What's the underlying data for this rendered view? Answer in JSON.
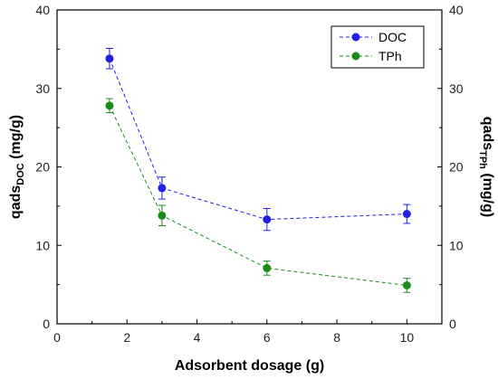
{
  "chart_data": {
    "type": "line",
    "xlabel": "Adsorbent dosage (g)",
    "ylabel_left": {
      "main": "qads",
      "sub": "DOC",
      "unit": " (mg/g)"
    },
    "ylabel_right": {
      "main": "qads",
      "sub": "TPh",
      "unit": " (mg/g)"
    },
    "xlim": [
      0,
      11
    ],
    "ylim": [
      0,
      40
    ],
    "x_ticks": [
      0,
      2,
      4,
      6,
      8,
      10
    ],
    "y_ticks": [
      0,
      10,
      20,
      30,
      40
    ],
    "legend_position": "top-right",
    "series": [
      {
        "name": "DOC",
        "color": "#1f1fe6",
        "x": [
          1.5,
          3,
          6,
          10
        ],
        "y": [
          33.8,
          17.3,
          13.3,
          14.0
        ],
        "err": [
          1.3,
          1.4,
          1.4,
          1.2
        ]
      },
      {
        "name": "TPh",
        "color": "#1a8a1a",
        "x": [
          1.5,
          3,
          6,
          10
        ],
        "y": [
          27.8,
          13.8,
          7.1,
          4.9
        ],
        "err": [
          0.9,
          1.3,
          0.9,
          0.9
        ]
      }
    ]
  }
}
